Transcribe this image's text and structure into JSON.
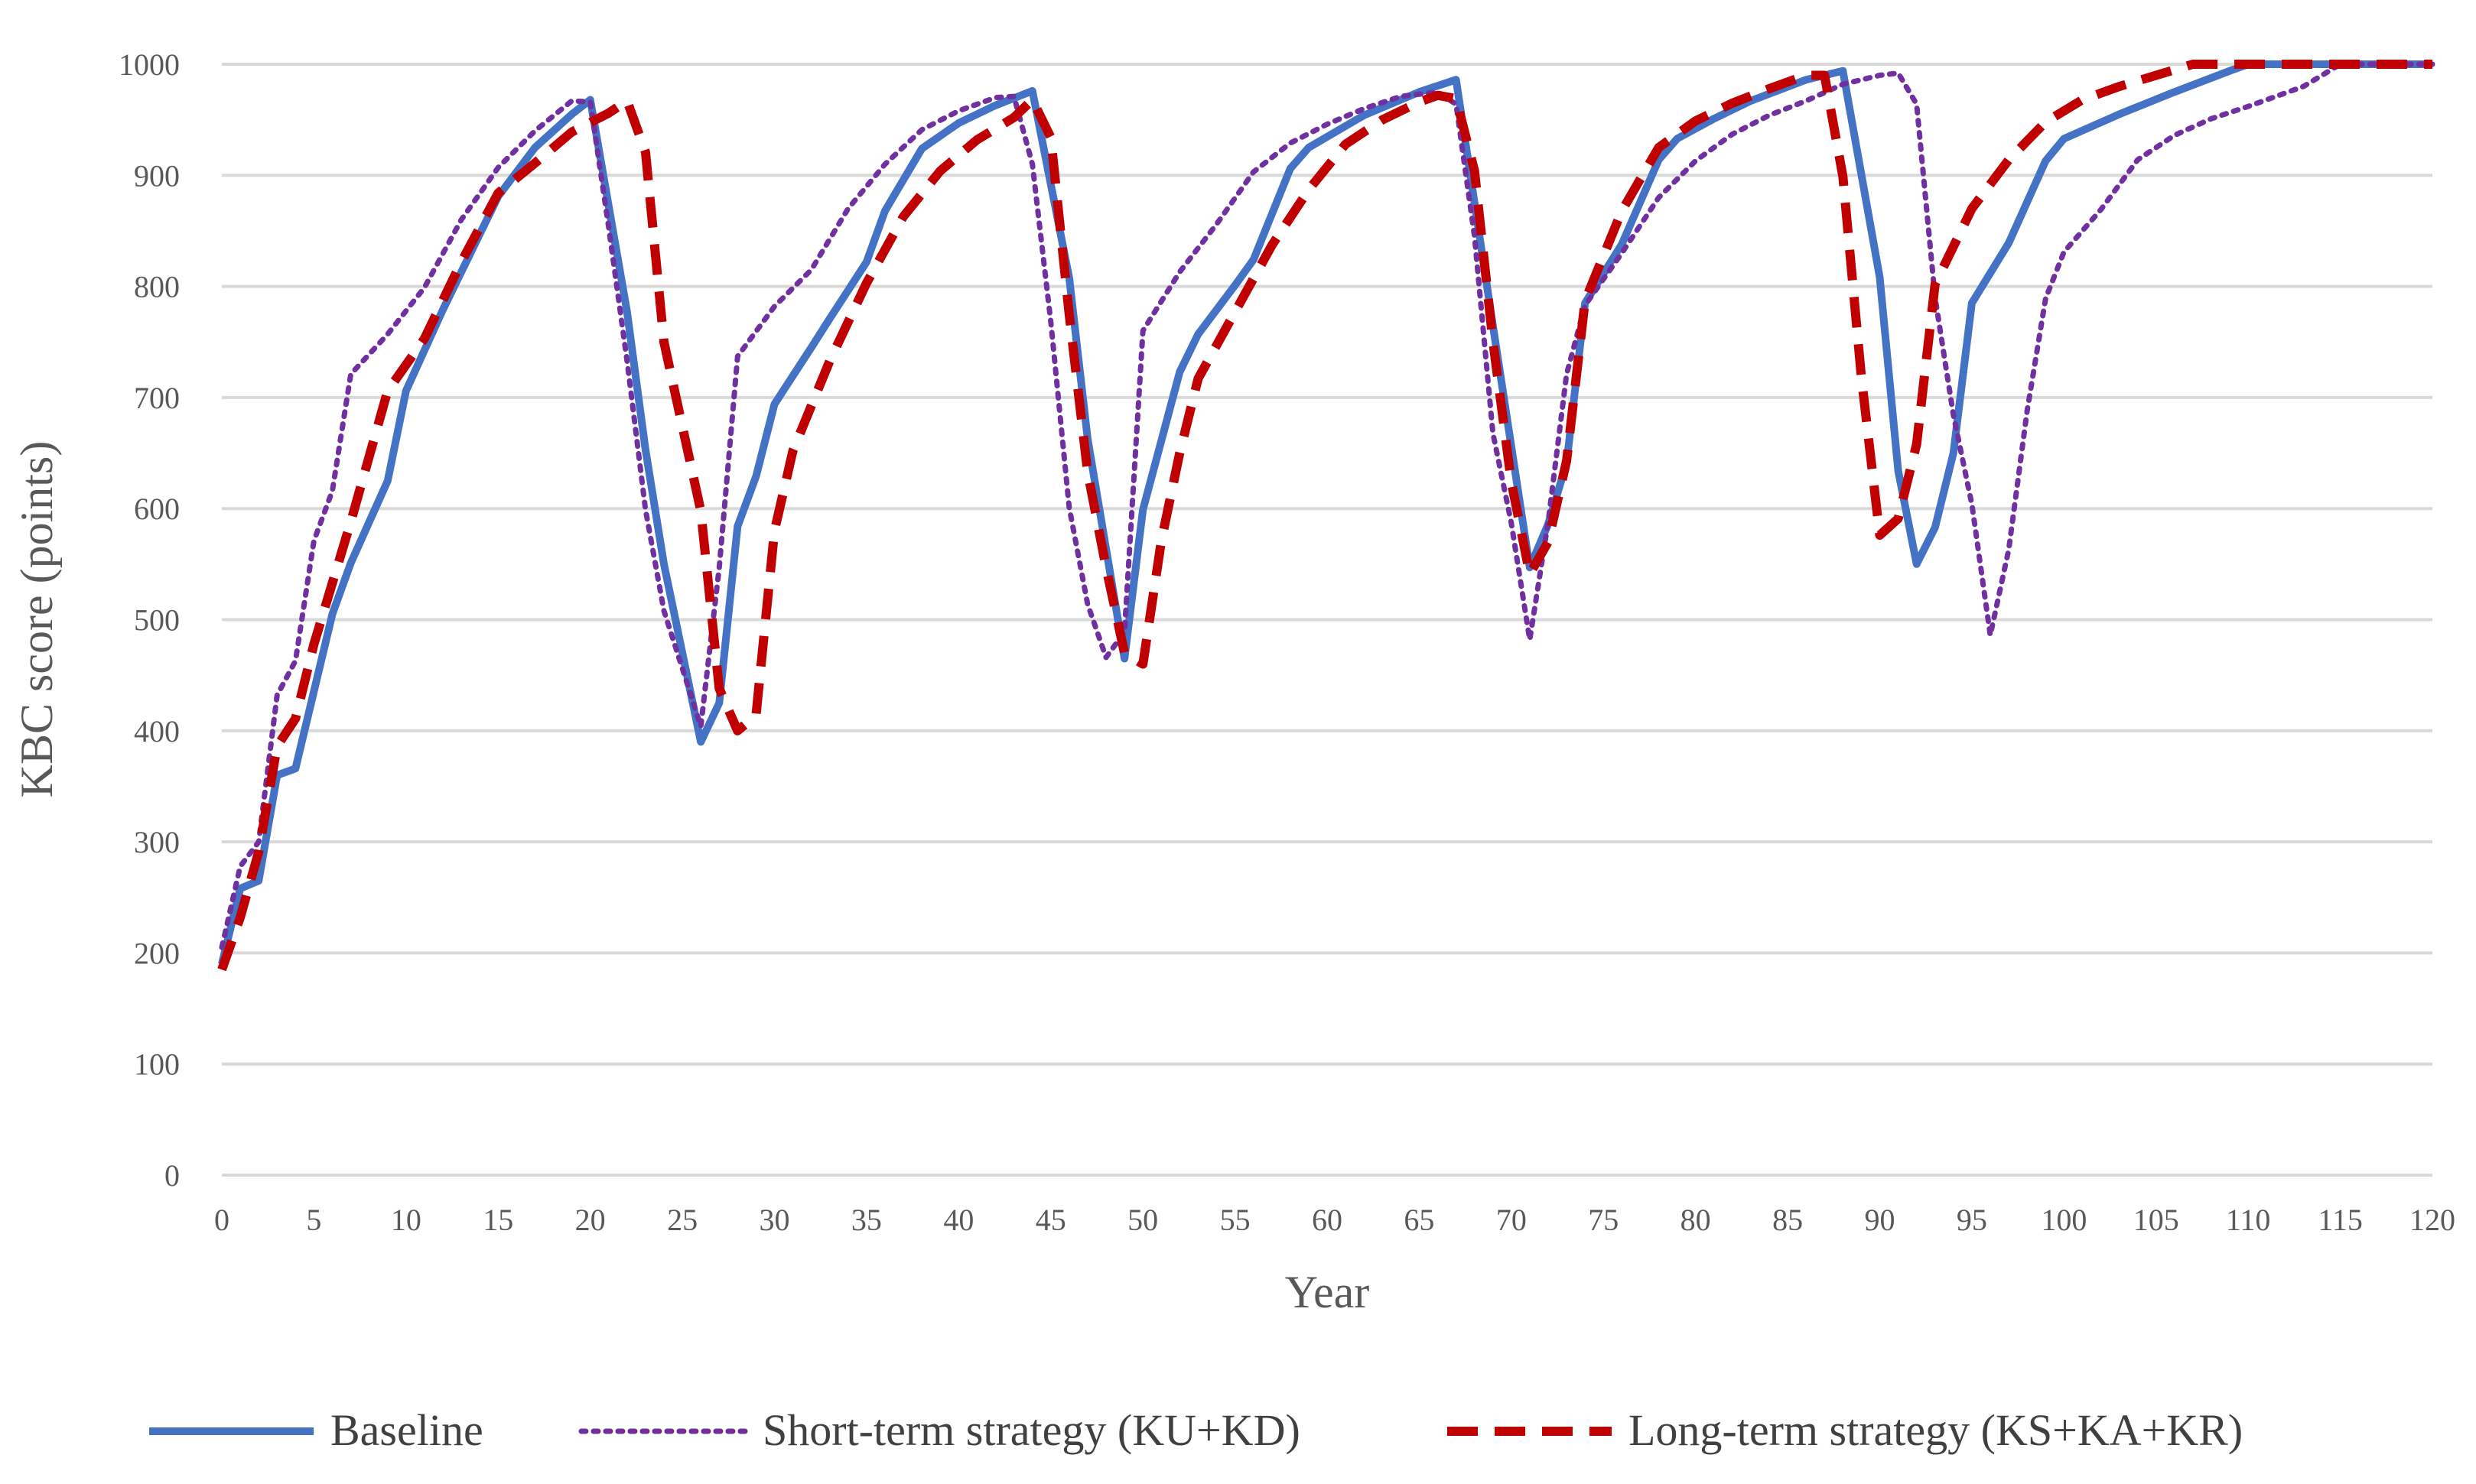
{
  "chart_data": {
    "type": "line",
    "xlabel": "Year",
    "ylabel": "KBC score (points)",
    "xlim": [
      0,
      120
    ],
    "ylim": [
      0,
      1000
    ],
    "xticks": [
      0,
      5,
      10,
      15,
      20,
      25,
      30,
      35,
      40,
      45,
      50,
      55,
      60,
      65,
      70,
      75,
      80,
      85,
      90,
      95,
      100,
      105,
      110,
      115,
      120
    ],
    "yticks": [
      0,
      100,
      200,
      300,
      400,
      500,
      600,
      700,
      800,
      900,
      1000
    ],
    "grid": "horizontal",
    "legend_position": "bottom",
    "series": [
      {
        "name": "Baseline",
        "color": "#4472C4",
        "style": "solid",
        "points": [
          [
            0,
            190
          ],
          [
            1,
            258
          ],
          [
            2,
            265
          ],
          [
            3,
            360
          ],
          [
            4,
            366
          ],
          [
            6,
            505
          ],
          [
            7,
            551
          ],
          [
            9,
            625
          ],
          [
            10,
            706
          ],
          [
            12,
            779
          ],
          [
            14,
            847
          ],
          [
            15,
            881
          ],
          [
            17,
            925
          ],
          [
            19,
            955
          ],
          [
            20,
            968
          ],
          [
            22,
            777
          ],
          [
            23,
            653
          ],
          [
            24,
            550
          ],
          [
            26,
            390
          ],
          [
            27,
            425
          ],
          [
            28,
            584
          ],
          [
            29,
            629
          ],
          [
            30,
            694
          ],
          [
            32,
            745
          ],
          [
            33,
            771
          ],
          [
            35,
            822
          ],
          [
            36,
            868
          ],
          [
            38,
            924
          ],
          [
            40,
            947
          ],
          [
            42,
            963
          ],
          [
            44,
            976
          ],
          [
            46,
            808
          ],
          [
            47,
            663
          ],
          [
            49,
            465
          ],
          [
            50,
            599
          ],
          [
            52,
            723
          ],
          [
            53,
            757
          ],
          [
            55,
            801
          ],
          [
            56,
            824
          ],
          [
            58,
            906
          ],
          [
            59,
            925
          ],
          [
            62,
            954
          ],
          [
            65,
            975
          ],
          [
            67,
            986
          ],
          [
            69,
            765
          ],
          [
            71,
            547
          ],
          [
            72,
            586
          ],
          [
            73,
            641
          ],
          [
            74,
            785
          ],
          [
            76,
            838
          ],
          [
            78,
            914
          ],
          [
            79,
            933
          ],
          [
            81,
            951
          ],
          [
            83,
            967
          ],
          [
            86,
            986
          ],
          [
            88,
            994
          ],
          [
            90,
            808
          ],
          [
            91,
            634
          ],
          [
            92,
            550
          ],
          [
            93,
            583
          ],
          [
            94,
            650
          ],
          [
            95,
            785
          ],
          [
            97,
            839
          ],
          [
            99,
            913
          ],
          [
            100,
            933
          ],
          [
            103,
            955
          ],
          [
            106,
            975
          ],
          [
            109,
            994
          ],
          [
            110,
            1000
          ],
          [
            113,
            1000
          ],
          [
            116,
            1000
          ],
          [
            120,
            1000
          ]
        ]
      },
      {
        "name": "Short-term strategy (KU+KD)",
        "color": "#7030A0",
        "style": "dotted",
        "points": [
          [
            0,
            205
          ],
          [
            1,
            278
          ],
          [
            2,
            300
          ],
          [
            3,
            432
          ],
          [
            4,
            463
          ],
          [
            5,
            571
          ],
          [
            6,
            616
          ],
          [
            7,
            721
          ],
          [
            9,
            757
          ],
          [
            11,
            799
          ],
          [
            13,
            860
          ],
          [
            15,
            907
          ],
          [
            17,
            940
          ],
          [
            19,
            967
          ],
          [
            20,
            966
          ],
          [
            21,
            853
          ],
          [
            22,
            733
          ],
          [
            23,
            599
          ],
          [
            24,
            508
          ],
          [
            26,
            404
          ],
          [
            27,
            547
          ],
          [
            28,
            737
          ],
          [
            30,
            782
          ],
          [
            32,
            815
          ],
          [
            34,
            870
          ],
          [
            36,
            910
          ],
          [
            38,
            941
          ],
          [
            40,
            958
          ],
          [
            42,
            970
          ],
          [
            43,
            971
          ],
          [
            44,
            910
          ],
          [
            45,
            768
          ],
          [
            46,
            601
          ],
          [
            47,
            514
          ],
          [
            48,
            466
          ],
          [
            49,
            489
          ],
          [
            50,
            760
          ],
          [
            52,
            813
          ],
          [
            54,
            856
          ],
          [
            56,
            903
          ],
          [
            58,
            929
          ],
          [
            60,
            946
          ],
          [
            62,
            960
          ],
          [
            64,
            971
          ],
          [
            66,
            975
          ],
          [
            67,
            964
          ],
          [
            68,
            845
          ],
          [
            69,
            668
          ],
          [
            70,
            587
          ],
          [
            71,
            482
          ],
          [
            72,
            588
          ],
          [
            73,
            721
          ],
          [
            74,
            783
          ],
          [
            76,
            830
          ],
          [
            78,
            880
          ],
          [
            80,
            913
          ],
          [
            82,
            937
          ],
          [
            84,
            954
          ],
          [
            86,
            967
          ],
          [
            88,
            982
          ],
          [
            90,
            990
          ],
          [
            91,
            992
          ],
          [
            92,
            964
          ],
          [
            93,
            790
          ],
          [
            94,
            684
          ],
          [
            95,
            604
          ],
          [
            96,
            486
          ],
          [
            97,
            563
          ],
          [
            98,
            688
          ],
          [
            99,
            789
          ],
          [
            100,
            831
          ],
          [
            102,
            869
          ],
          [
            104,
            914
          ],
          [
            106,
            936
          ],
          [
            108,
            951
          ],
          [
            110,
            962
          ],
          [
            113,
            980
          ],
          [
            115,
            1000
          ],
          [
            118,
            1000
          ],
          [
            120,
            1000
          ]
        ]
      },
      {
        "name": "Long-term strategy (KS+KA+KR)",
        "color": "#C00000",
        "style": "dashed",
        "points": [
          [
            0,
            185
          ],
          [
            1,
            232
          ],
          [
            2,
            291
          ],
          [
            3,
            386
          ],
          [
            4,
            411
          ],
          [
            5,
            478
          ],
          [
            7,
            588
          ],
          [
            9,
            706
          ],
          [
            11,
            753
          ],
          [
            13,
            822
          ],
          [
            15,
            884
          ],
          [
            17,
            911
          ],
          [
            19,
            939
          ],
          [
            21,
            956
          ],
          [
            22,
            967
          ],
          [
            23,
            921
          ],
          [
            24,
            750
          ],
          [
            26,
            598
          ],
          [
            27,
            438
          ],
          [
            28,
            400
          ],
          [
            29,
            414
          ],
          [
            30,
            580
          ],
          [
            31,
            652
          ],
          [
            33,
            733
          ],
          [
            35,
            803
          ],
          [
            37,
            863
          ],
          [
            39,
            904
          ],
          [
            41,
            932
          ],
          [
            43,
            952
          ],
          [
            44,
            968
          ],
          [
            45,
            934
          ],
          [
            46,
            775
          ],
          [
            47,
            633
          ],
          [
            48,
            547
          ],
          [
            49,
            470
          ],
          [
            50,
            460
          ],
          [
            51,
            571
          ],
          [
            52,
            650
          ],
          [
            53,
            717
          ],
          [
            55,
            777
          ],
          [
            57,
            837
          ],
          [
            59,
            887
          ],
          [
            61,
            928
          ],
          [
            63,
            950
          ],
          [
            65,
            966
          ],
          [
            66,
            972
          ],
          [
            67,
            969
          ],
          [
            68,
            904
          ],
          [
            69,
            751
          ],
          [
            70,
            624
          ],
          [
            71,
            541
          ],
          [
            72,
            570
          ],
          [
            73,
            643
          ],
          [
            74,
            787
          ],
          [
            76,
            868
          ],
          [
            78,
            925
          ],
          [
            80,
            949
          ],
          [
            82,
            965
          ],
          [
            84,
            978
          ],
          [
            86,
            990
          ],
          [
            87,
            990
          ],
          [
            88,
            899
          ],
          [
            89,
            719
          ],
          [
            90,
            576
          ],
          [
            91,
            591
          ],
          [
            92,
            658
          ],
          [
            93,
            802
          ],
          [
            95,
            870
          ],
          [
            97,
            914
          ],
          [
            99,
            948
          ],
          [
            101,
            968
          ],
          [
            103,
            980
          ],
          [
            105,
            990
          ],
          [
            107,
            1000
          ],
          [
            110,
            1000
          ],
          [
            113,
            1000
          ],
          [
            116,
            1000
          ],
          [
            120,
            1000
          ]
        ]
      }
    ]
  }
}
